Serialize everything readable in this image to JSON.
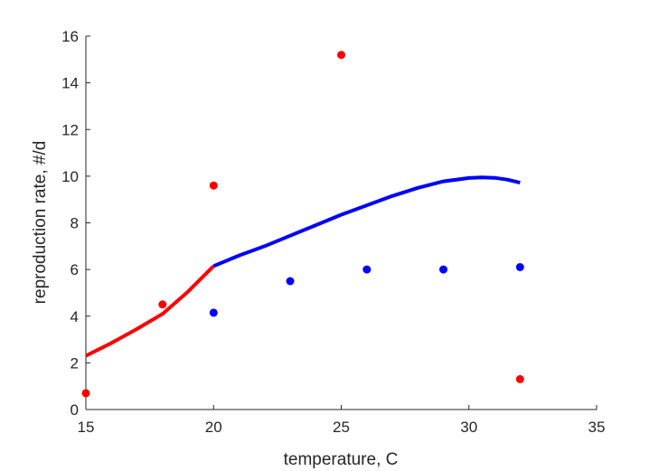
{
  "chart_data": {
    "type": "line",
    "title": "",
    "xlabel": "temperature, C",
    "ylabel": "reproduction rate, #/d",
    "xlim": [
      15,
      35
    ],
    "ylim": [
      0,
      16
    ],
    "x_ticks": [
      15,
      20,
      25,
      30,
      35
    ],
    "y_ticks": [
      0,
      2,
      4,
      6,
      8,
      10,
      12,
      14,
      16
    ],
    "grid": false,
    "legend": "none",
    "series": [
      {
        "kind": "line",
        "color": "#ff0000",
        "x": [
          15,
          16,
          17,
          18,
          19,
          20
        ],
        "y": [
          2.3,
          2.85,
          3.45,
          4.1,
          5.05,
          6.15
        ]
      },
      {
        "kind": "line",
        "color": "#0000ff",
        "x": [
          20,
          21,
          22,
          23,
          24,
          25,
          26,
          27,
          28,
          29,
          30,
          30.5,
          31,
          31.5,
          32
        ],
        "y": [
          6.15,
          6.6,
          7.0,
          7.45,
          7.9,
          8.35,
          8.75,
          9.15,
          9.5,
          9.78,
          9.92,
          9.95,
          9.93,
          9.85,
          9.72
        ]
      },
      {
        "kind": "scatter",
        "color": "#ff0000",
        "x": [
          15,
          18,
          20,
          25,
          32
        ],
        "y": [
          0.7,
          4.5,
          9.6,
          15.2,
          1.3
        ]
      },
      {
        "kind": "scatter",
        "color": "#0000ff",
        "x": [
          20,
          23,
          26,
          29,
          32
        ],
        "y": [
          4.15,
          5.5,
          6.0,
          6.0,
          6.1
        ]
      }
    ]
  }
}
